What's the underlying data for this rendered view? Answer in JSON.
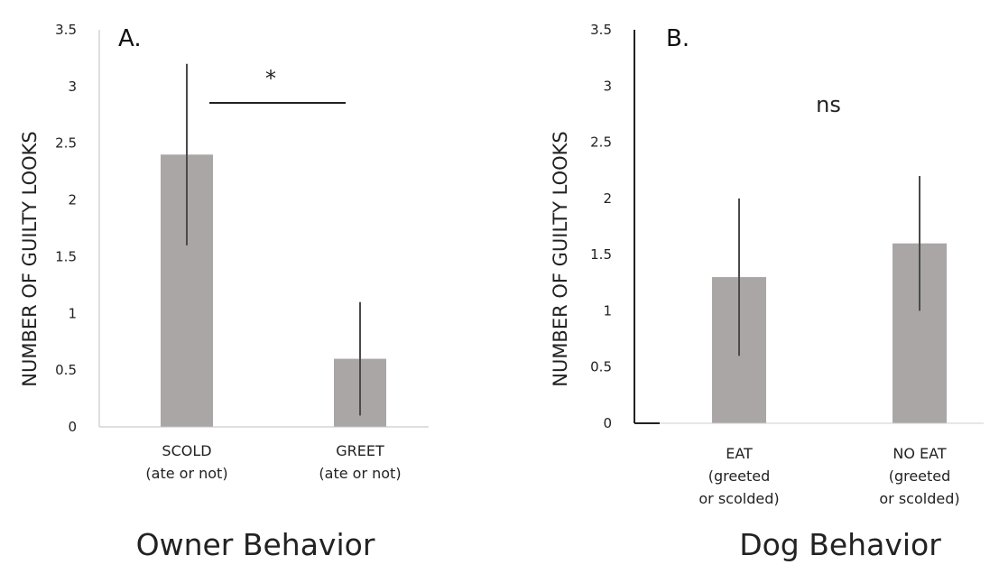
{
  "chart_data": [
    {
      "type": "bar",
      "panel_label": "A.",
      "ylabel": "NUMBER OF GUILTY LOOKS",
      "xlabel": "Owner Behavior",
      "ylim": [
        0,
        3.5
      ],
      "yticks": [
        "0",
        "0.5",
        "1",
        "1.5",
        "2",
        "2.5",
        "3",
        "3.5"
      ],
      "categories": [
        [
          "SCOLD",
          "(ate or not)"
        ],
        [
          "GREET",
          "(ate or not)"
        ]
      ],
      "values": [
        2.4,
        0.6
      ],
      "error_low": [
        1.6,
        0.1
      ],
      "error_high": [
        3.2,
        1.1
      ],
      "significance": "*",
      "bar_color": "#aaa6a6",
      "grid": false
    },
    {
      "type": "bar",
      "panel_label": "B.",
      "ylabel": "NUMBER OF GUILTY LOOKS",
      "xlabel": "Dog Behavior",
      "ylim": [
        0,
        3.5
      ],
      "yticks": [
        "0",
        "0.5",
        "1",
        "1.5",
        "2",
        "2.5",
        "3",
        "3.5"
      ],
      "categories": [
        [
          "EAT",
          "(greeted",
          "or scolded)"
        ],
        [
          "NO EAT",
          "(greeted",
          "or scolded)"
        ]
      ],
      "values": [
        1.3,
        1.6
      ],
      "error_low": [
        0.6,
        1.0
      ],
      "error_high": [
        2.0,
        2.2
      ],
      "significance": "ns",
      "bar_color": "#aaa6a6",
      "grid": false
    }
  ]
}
